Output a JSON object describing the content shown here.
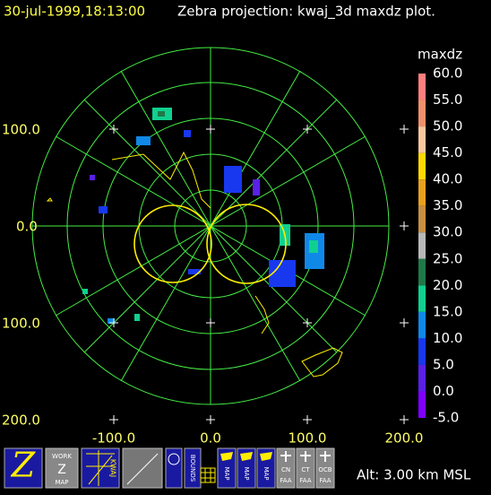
{
  "header": {
    "time": "30-jul-1999,18:13:00",
    "title": "Zebra projection: kwaj_3d maxdz plot."
  },
  "colorbar": {
    "label": "maxdz",
    "entries": [
      {
        "label": "60.0",
        "color": "#ff6a8a"
      },
      {
        "label": "55.0",
        "color": "#ff7f7f"
      },
      {
        "label": "50.0",
        "color": "#f0906c"
      },
      {
        "label": "45.0",
        "color": "#f8c8a0"
      },
      {
        "label": "40.0",
        "color": "#ffd800"
      },
      {
        "label": "35.0",
        "color": "#e8a020"
      },
      {
        "label": "30.0",
        "color": "#c89040"
      },
      {
        "label": "25.0",
        "color": "#b8b8b8"
      },
      {
        "label": "20.0",
        "color": "#207848"
      },
      {
        "label": "15.0",
        "color": "#10d090"
      },
      {
        "label": "10.0",
        "color": "#1088e8"
      },
      {
        "label": "5.0",
        "color": "#1838f0"
      },
      {
        "label": "0.0",
        "color": "#5a20e8"
      },
      {
        "label": "-5.0",
        "color": "#8000ff"
      }
    ]
  },
  "y_axis_labels": [
    "100.0",
    "0.0",
    "100.0",
    "200.0"
  ],
  "x_axis_labels": [
    "-100.0",
    "0.0",
    "100.0",
    "200.0"
  ],
  "toolbar": {
    "work_map": [
      "WORK",
      "Z",
      "MAP"
    ],
    "kwaj": "KWAJ",
    "bounds": "BOUNDS",
    "maps": [
      "MAP",
      "MAP",
      "MAP"
    ],
    "faa": [
      "CN",
      "CT",
      "OCB"
    ],
    "faa_suffix": "FAA"
  },
  "altitude": "Alt: 3.00 km MSL"
}
